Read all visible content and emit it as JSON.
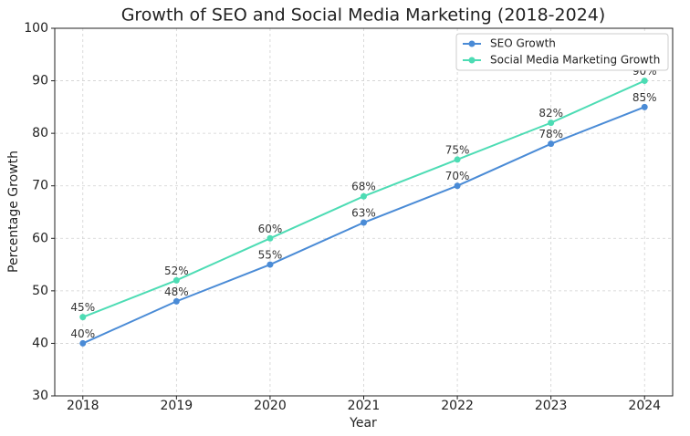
{
  "chart_data": {
    "type": "line",
    "title": "Growth of SEO and Social Media Marketing (2018-2024)",
    "x_label": "Year",
    "y_label": "Percentage Growth",
    "x": [
      2018,
      2019,
      2020,
      2021,
      2022,
      2023,
      2024
    ],
    "series": [
      {
        "name": "SEO Growth",
        "color": "#4a8bd6",
        "values": [
          40,
          48,
          55,
          63,
          70,
          78,
          85
        ],
        "value_labels": [
          "40%",
          "48%",
          "55%",
          "63%",
          "70%",
          "78%",
          "85%"
        ]
      },
      {
        "name": "Social Media Marketing Growth",
        "color": "#4ddcb4",
        "values": [
          45,
          52,
          60,
          68,
          75,
          82,
          90
        ],
        "value_labels": [
          "45%",
          "52%",
          "60%",
          "68%",
          "75%",
          "82%",
          "90%"
        ]
      }
    ],
    "xlim": [
      2017.7,
      2024.3
    ],
    "xticks": [
      2018,
      2019,
      2020,
      2021,
      2022,
      2023,
      2024
    ],
    "ylim": [
      30,
      100
    ],
    "yticks": [
      30,
      40,
      50,
      60,
      70,
      80,
      90,
      100
    ],
    "grid": true,
    "legend": "upper right"
  }
}
